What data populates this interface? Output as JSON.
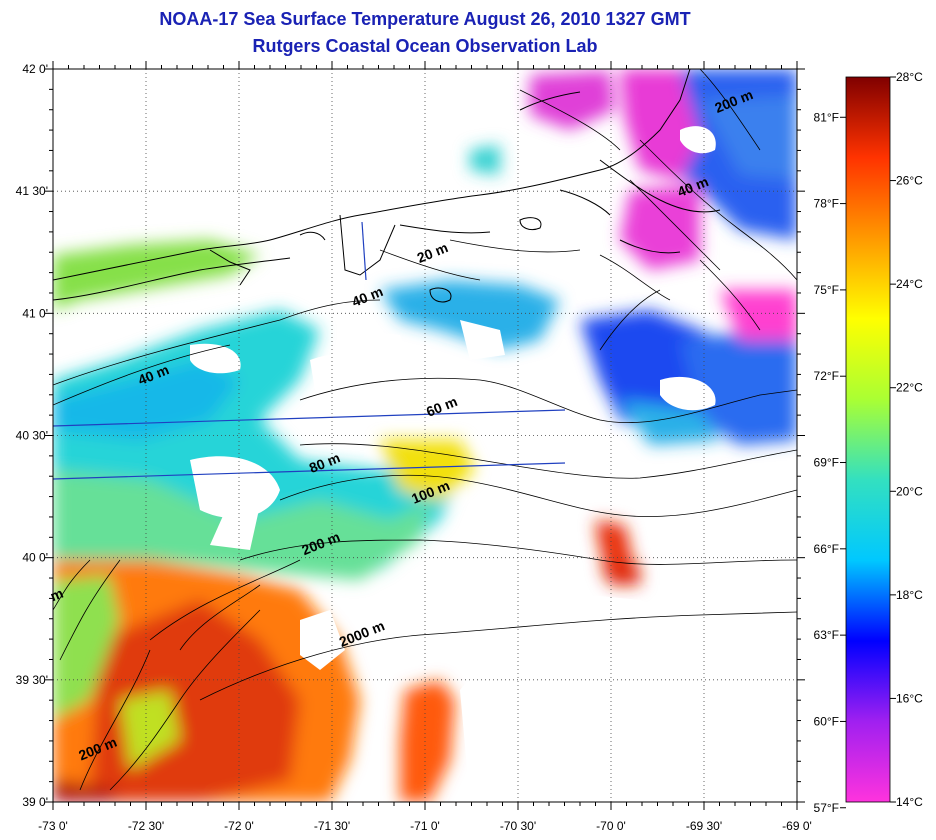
{
  "header": {
    "title": "NOAA-17 Sea Surface Temperature August 26, 2010 1327 GMT",
    "subtitle": "Rutgers Coastal Ocean Observation Lab"
  },
  "axes": {
    "lon_ticks": [
      "-73 0'",
      "-72 30'",
      "-72 0'",
      "-71 30'",
      "-71 0'",
      "-70 30'",
      "-70 0'",
      "-69 30'",
      "-69 0'"
    ],
    "lat_ticks": [
      "42 0'",
      "41 30'",
      "41 0'",
      "40 30'",
      "40 0'",
      "39 30'",
      "39 0'"
    ],
    "lon_range": [
      -73,
      -69
    ],
    "lat_range": [
      39,
      42
    ]
  },
  "contour_labels": [
    {
      "text": "200 m",
      "lon": -69.33,
      "lat": 41.85
    },
    {
      "text": "40 m",
      "lon": -69.55,
      "lat": 41.5
    },
    {
      "text": "20 m",
      "lon": -70.95,
      "lat": 41.23
    },
    {
      "text": "40 m",
      "lon": -71.3,
      "lat": 41.05
    },
    {
      "text": "40 m",
      "lon": -72.45,
      "lat": 40.73
    },
    {
      "text": "60 m",
      "lon": -70.9,
      "lat": 40.6
    },
    {
      "text": "80 m",
      "lon": -71.53,
      "lat": 40.37
    },
    {
      "text": "100 m",
      "lon": -70.96,
      "lat": 40.25
    },
    {
      "text": "200 m",
      "lon": -71.55,
      "lat": 40.04
    },
    {
      "text": "2000 m",
      "lon": -71.33,
      "lat": 39.67
    },
    {
      "text": "200 m",
      "lon": -72.75,
      "lat": 39.2
    },
    {
      "text": "m",
      "lon": -72.97,
      "lat": 39.83
    }
  ],
  "colorbar": {
    "celsius_labels": [
      "28°C",
      "26°C",
      "24°C",
      "22°C",
      "20°C",
      "18°C",
      "16°C",
      "14°C"
    ],
    "fahrenheit_labels": [
      "81°F",
      "78°F",
      "75°F",
      "72°F",
      "69°F",
      "66°F",
      "63°F",
      "60°F",
      "57°F"
    ],
    "range_c": [
      14,
      28
    ],
    "colors": [
      "#ff33dd",
      "#a020f0",
      "#0000ff",
      "#00c8ff",
      "#33e0c0",
      "#aaff33",
      "#ffff00",
      "#ff9900",
      "#ff3300",
      "#800000"
    ]
  },
  "colors": {
    "title": "#1a22b4",
    "track_line": "#2040c0"
  }
}
